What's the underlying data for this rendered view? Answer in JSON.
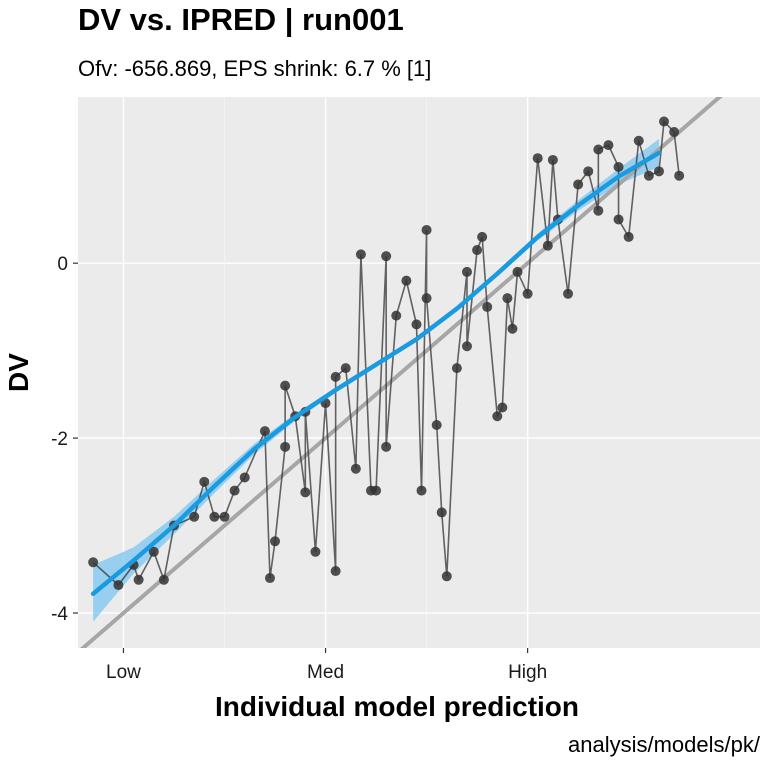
{
  "title": "DV vs. IPRED | run001",
  "subtitle": "Ofv: -656.869, EPS shrink: 6.7 % [1]",
  "caption": "analysis/models/pk/",
  "chart_data": {
    "type": "scatter",
    "xlabel": "Individual model prediction",
    "ylabel": "DV",
    "x_ticks": [
      {
        "value": -4,
        "label": "Low"
      },
      {
        "value": -2,
        "label": "Med"
      },
      {
        "value": 0,
        "label": "High"
      }
    ],
    "y_ticks": [
      {
        "value": 0,
        "label": "0"
      },
      {
        "value": -2,
        "label": "-2"
      },
      {
        "value": -4,
        "label": "-4"
      }
    ],
    "xlim": [
      -4.45,
      2.3
    ],
    "ylim": [
      -4.4,
      1.9
    ],
    "grid": true,
    "background": "#ebebeb",
    "point_color": "#333333",
    "smooth_color": "#1a9be0",
    "band_color": "#7cc6f2",
    "identity_color": "#a6a6a6",
    "identity_line": {
      "slope": 1,
      "intercept": 0
    },
    "smooth": {
      "x": [
        -4.3,
        -3.9,
        -3.5,
        -3.1,
        -2.7,
        -2.3,
        -1.9,
        -1.5,
        -1.1,
        -0.7,
        -0.3,
        0.1,
        0.5,
        0.9,
        1.3
      ],
      "y": [
        -3.78,
        -3.4,
        -3.0,
        -2.55,
        -2.12,
        -1.76,
        -1.45,
        -1.16,
        -0.87,
        -0.52,
        -0.12,
        0.3,
        0.66,
        0.99,
        1.26
      ],
      "lower": [
        -4.1,
        -3.55,
        -3.1,
        -2.63,
        -2.18,
        -1.8,
        -1.48,
        -1.19,
        -0.9,
        -0.55,
        -0.15,
        0.26,
        0.6,
        0.9,
        1.1
      ],
      "upper": [
        -3.45,
        -3.25,
        -2.9,
        -2.47,
        -2.06,
        -1.72,
        -1.42,
        -1.13,
        -0.84,
        -0.49,
        -0.09,
        0.34,
        0.72,
        1.08,
        1.42
      ]
    },
    "points": [
      [
        -4.3,
        -3.42
      ],
      [
        -4.05,
        -3.68
      ],
      [
        -3.85,
        -3.62
      ],
      [
        -3.9,
        -3.45
      ],
      [
        -3.6,
        -3.62
      ],
      [
        -3.7,
        -3.3
      ],
      [
        -3.5,
        -3.0
      ],
      [
        -3.3,
        -2.9
      ],
      [
        -3.2,
        -2.5
      ],
      [
        -3.0,
        -2.9
      ],
      [
        -2.8,
        -2.45
      ],
      [
        -2.6,
        -1.92
      ],
      [
        -2.55,
        -3.6
      ],
      [
        -2.5,
        -3.18
      ],
      [
        -2.4,
        -2.1
      ],
      [
        -2.3,
        -1.75
      ],
      [
        -2.2,
        -2.62
      ],
      [
        -2.1,
        -3.3
      ],
      [
        -2.0,
        -1.6
      ],
      [
        -1.9,
        -3.52
      ],
      [
        -1.8,
        -1.2
      ],
      [
        -1.7,
        -2.35
      ],
      [
        -1.65,
        0.1
      ],
      [
        -1.55,
        -2.6
      ],
      [
        -1.5,
        -2.6
      ],
      [
        -1.4,
        0.08
      ],
      [
        -1.3,
        -0.6
      ],
      [
        -1.2,
        -0.2
      ],
      [
        -1.1,
        -0.7
      ],
      [
        -1.05,
        -2.6
      ],
      [
        -1.0,
        0.38
      ],
      [
        -0.9,
        -1.85
      ],
      [
        -0.85,
        -2.85
      ],
      [
        -0.8,
        -3.58
      ],
      [
        -0.7,
        -1.2
      ],
      [
        -0.6,
        -0.1
      ],
      [
        -0.5,
        0.15
      ],
      [
        -0.4,
        -0.5
      ],
      [
        -0.3,
        -1.75
      ],
      [
        -0.2,
        -0.4
      ],
      [
        -0.1,
        -0.1
      ],
      [
        0.0,
        -0.35
      ],
      [
        0.1,
        1.2
      ],
      [
        0.2,
        0.2
      ],
      [
        0.25,
        1.18
      ],
      [
        0.4,
        -0.35
      ],
      [
        0.5,
        0.9
      ],
      [
        0.6,
        1.05
      ],
      [
        0.7,
        0.6
      ],
      [
        0.8,
        1.35
      ],
      [
        0.9,
        1.1
      ],
      [
        1.0,
        0.3
      ],
      [
        1.1,
        1.4
      ],
      [
        1.2,
        1.0
      ],
      [
        1.35,
        1.62
      ],
      [
        1.45,
        1.5
      ],
      [
        1.5,
        1.0
      ],
      [
        1.3,
        1.05
      ],
      [
        0.7,
        1.3
      ],
      [
        0.9,
        0.5
      ],
      [
        -0.25,
        -1.65
      ],
      [
        -2.4,
        -1.4
      ],
      [
        -1.0,
        -0.4
      ],
      [
        -0.15,
        -0.75
      ],
      [
        -0.6,
        -0.95
      ],
      [
        -1.9,
        -1.3
      ],
      [
        -2.2,
        -1.7
      ],
      [
        -1.4,
        -2.1
      ],
      [
        -0.45,
        0.3
      ],
      [
        0.3,
        0.5
      ],
      [
        -3.1,
        -2.9
      ],
      [
        -2.9,
        -2.6
      ]
    ]
  }
}
